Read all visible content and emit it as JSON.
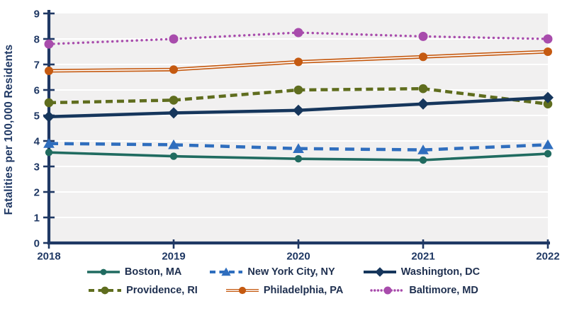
{
  "chart_data": {
    "type": "line",
    "title": "",
    "xlabel": "",
    "ylabel": "Fatalities per 100,000 Residents",
    "x": [
      "2018",
      "2019",
      "2020",
      "2021",
      "2022"
    ],
    "ylim": [
      0,
      9
    ],
    "ytick_step": 1,
    "grid": true,
    "legend_position": "bottom",
    "plot_bg": "#F1F0F0",
    "gridline_color": "#FFFFFF",
    "axis_color": "#1F3864",
    "legend_text_color": "#1E2F4F",
    "series": [
      {
        "name": "Boston, MA",
        "values": [
          3.55,
          3.4,
          3.3,
          3.25,
          3.5
        ],
        "color": "#206B60",
        "line_style": "solid",
        "line_width": 3.6,
        "marker": "circle",
        "marker_size": 5.2,
        "dash": ""
      },
      {
        "name": "New York City, NY",
        "values": [
          3.9,
          3.85,
          3.7,
          3.65,
          3.85
        ],
        "color": "#2F6EBE",
        "line_style": "dashed",
        "line_width": 4.5,
        "marker": "triangle",
        "marker_size": 7.5,
        "dash": "13 9"
      },
      {
        "name": "Washington, DC",
        "values": [
          4.95,
          5.1,
          5.2,
          5.45,
          5.7
        ],
        "color": "#16365C",
        "line_style": "solid",
        "line_width": 4.5,
        "marker": "diamond",
        "marker_size": 8,
        "dash": ""
      },
      {
        "name": "Providence, RI",
        "values": [
          5.5,
          5.6,
          6.0,
          6.05,
          5.45
        ],
        "color": "#5F6D1E",
        "line_style": "dashed",
        "line_width": 4.5,
        "marker": "circle",
        "marker_size": 6.3,
        "dash": "10 6"
      },
      {
        "name": "Philadelphia, PA",
        "values": [
          6.75,
          6.8,
          7.1,
          7.3,
          7.5
        ],
        "color": "#C55A11",
        "line_style": "double",
        "line_width": 5,
        "marker": "circle",
        "marker_size": 6,
        "dash": ""
      },
      {
        "name": "Baltimore, MD",
        "values": [
          7.8,
          8.0,
          8.25,
          8.1,
          8.0
        ],
        "color": "#A84CAC",
        "line_style": "dotted",
        "line_width": 3.4,
        "marker": "circle",
        "marker_size": 6.5,
        "dash": "0.1 6.8"
      }
    ]
  },
  "legend": {
    "rows": [
      [
        "Boston, MA",
        "New York City, NY",
        "Washington, DC"
      ],
      [
        "Providence, RI",
        "Philadelphia, PA",
        "Baltimore, MD"
      ]
    ]
  }
}
